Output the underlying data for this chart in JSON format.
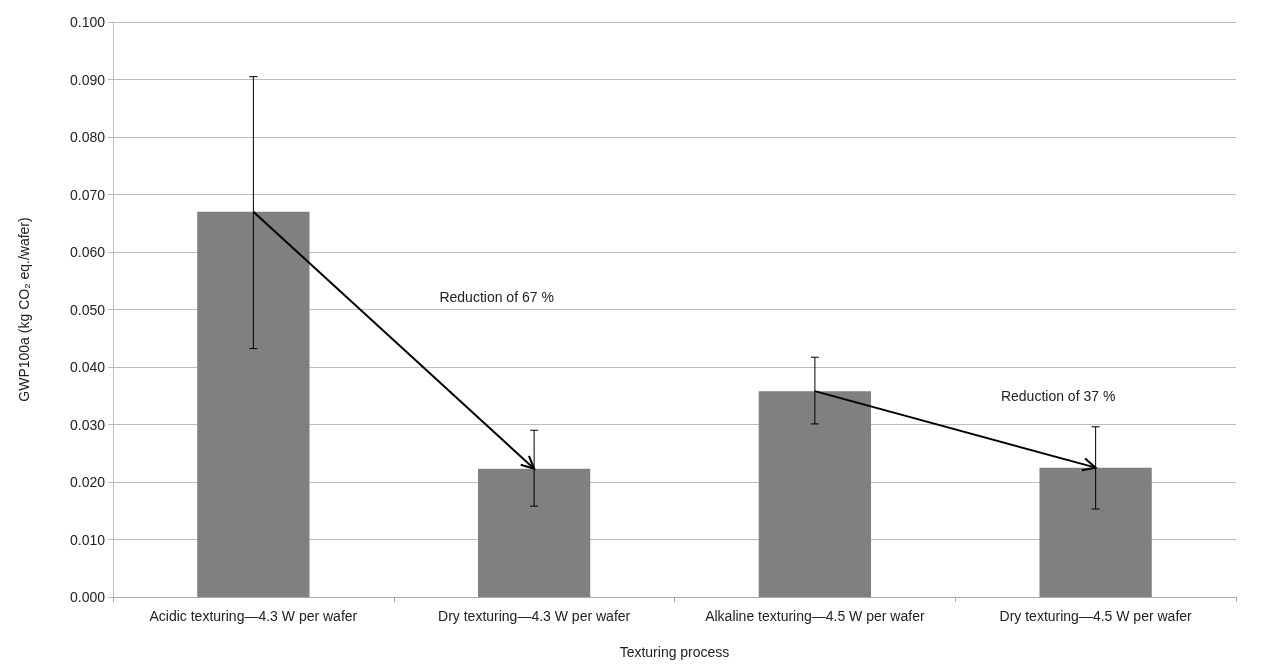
{
  "chart_data": {
    "type": "bar",
    "xlabel": "Texturing process",
    "ylabel": "GWP100a (kg CO₂ eq./wafer)",
    "categories": [
      "Acidic texturing—4.3 W per wafer",
      "Dry texturing—4.3 W per wafer",
      "Alkaline texturing—4.5 W per wafer",
      "Dry texturing—4.5 W per wafer"
    ],
    "values": [
      0.067,
      0.0223,
      0.0358,
      0.0225
    ],
    "errors": [
      [
        0.0432,
        0.0905
      ],
      [
        0.0158,
        0.029
      ],
      [
        0.0301,
        0.0417
      ],
      [
        0.0153,
        0.0296
      ]
    ],
    "color": "#808080",
    "ylim": [
      0,
      0.1
    ],
    "yticks": [
      {
        "value": 0,
        "label": "0.000"
      },
      {
        "value": 0.01,
        "label": "0.010"
      },
      {
        "value": 0.02,
        "label": "0.020"
      },
      {
        "value": 0.03,
        "label": "0.030"
      },
      {
        "value": 0.04,
        "label": "0.040"
      },
      {
        "value": 0.05,
        "label": "0.050"
      },
      {
        "value": 0.06,
        "label": "0.060"
      },
      {
        "value": 0.07,
        "label": "0.070"
      },
      {
        "value": 0.08,
        "label": "0.080"
      },
      {
        "value": 0.09,
        "label": "0.090"
      },
      {
        "value": 0.1,
        "label": "0.100"
      }
    ],
    "grid": "y",
    "annotations": [
      "Reduction of 67 %",
      "Reduction of 37 %"
    ]
  }
}
